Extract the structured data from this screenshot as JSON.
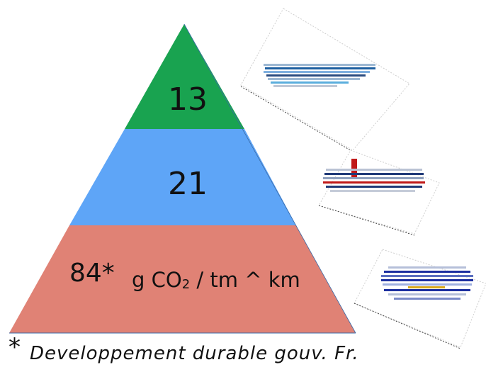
{
  "pyramid": {
    "top": {
      "value": "13",
      "color": "#19a350"
    },
    "middle": {
      "value": "21",
      "color": "#5ea5f7"
    },
    "bottom": {
      "value": "84*",
      "color": "#e08275"
    },
    "unit": {
      "prefix": "g CO",
      "subscript": "2",
      "suffix": " / tm ^ km"
    }
  },
  "source": {
    "marker": "*",
    "text": "Developpement durable gouv. Fr."
  },
  "side_images": [
    {
      "icon": "aircraft-icon",
      "colors": [
        "#1d5fa0",
        "#5aaedd"
      ]
    },
    {
      "icon": "truck-icon",
      "colors": [
        "#203a78",
        "#c01818"
      ]
    },
    {
      "icon": "ship-icon",
      "colors": [
        "#1c2fa0",
        "#d9a81c"
      ]
    }
  ]
}
